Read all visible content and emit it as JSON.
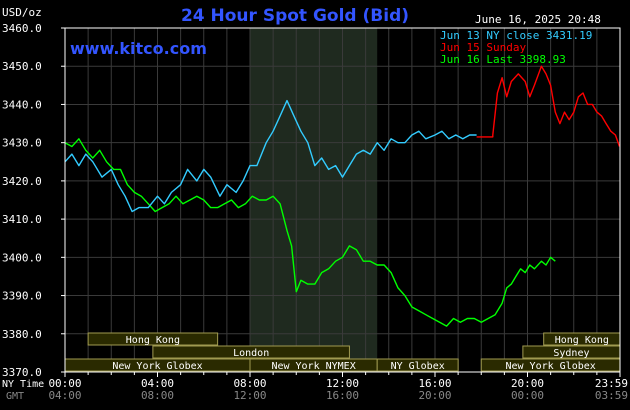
{
  "chart_data": {
    "type": "line",
    "title": "24 Hour Spot Gold (Bid)",
    "watermark": "www.kitco.com",
    "date_text": "June 16, 2025 20:48",
    "ylabel": "USD/oz",
    "ylim": [
      3370.0,
      3460.0
    ],
    "yticks": [
      "3460.0",
      "3450.0",
      "3440.0",
      "3430.0",
      "3420.0",
      "3410.0",
      "3400.0",
      "3390.0",
      "3380.0",
      "3370.0"
    ],
    "x_row_labels": {
      "ny": "NY Time",
      "gmt": "GMT"
    },
    "xticks_ny": [
      "00:00",
      "04:00",
      "08:00",
      "12:00",
      "16:00",
      "20:00",
      "23:59"
    ],
    "xticks_gmt": [
      "04:00",
      "08:00",
      "12:00",
      "16:00",
      "20:00",
      "00:00",
      "03:59"
    ],
    "xlim_hours": [
      0,
      24
    ],
    "shaded_session_hours": [
      8.0,
      13.5
    ],
    "grid": true,
    "legend_position": "top-right",
    "series": [
      {
        "name": "Jun 13 NY close 3431.19",
        "color": "#33ccff",
        "points": [
          [
            0.0,
            3425
          ],
          [
            0.3,
            3427
          ],
          [
            0.6,
            3424
          ],
          [
            0.9,
            3427
          ],
          [
            1.2,
            3425
          ],
          [
            1.6,
            3421
          ],
          [
            2.0,
            3423
          ],
          [
            2.3,
            3419
          ],
          [
            2.6,
            3416
          ],
          [
            2.9,
            3412
          ],
          [
            3.2,
            3413
          ],
          [
            3.6,
            3413
          ],
          [
            4.0,
            3416
          ],
          [
            4.3,
            3414
          ],
          [
            4.6,
            3417
          ],
          [
            5.0,
            3419
          ],
          [
            5.3,
            3423
          ],
          [
            5.7,
            3420
          ],
          [
            6.0,
            3423
          ],
          [
            6.3,
            3421
          ],
          [
            6.7,
            3416
          ],
          [
            7.0,
            3419
          ],
          [
            7.4,
            3417
          ],
          [
            7.7,
            3420
          ],
          [
            8.0,
            3424
          ],
          [
            8.3,
            3424
          ],
          [
            8.7,
            3430
          ],
          [
            9.0,
            3433
          ],
          [
            9.3,
            3437
          ],
          [
            9.6,
            3441
          ],
          [
            9.9,
            3437
          ],
          [
            10.2,
            3433
          ],
          [
            10.5,
            3430
          ],
          [
            10.8,
            3424
          ],
          [
            11.1,
            3426
          ],
          [
            11.4,
            3423
          ],
          [
            11.7,
            3424
          ],
          [
            12.0,
            3421
          ],
          [
            12.3,
            3424
          ],
          [
            12.6,
            3427
          ],
          [
            12.9,
            3428
          ],
          [
            13.2,
            3427
          ],
          [
            13.5,
            3430
          ],
          [
            13.8,
            3428
          ],
          [
            14.1,
            3431
          ],
          [
            14.4,
            3430
          ],
          [
            14.7,
            3430
          ],
          [
            15.0,
            3432
          ],
          [
            15.3,
            3433
          ],
          [
            15.6,
            3431
          ],
          [
            16.0,
            3432
          ],
          [
            16.3,
            3433
          ],
          [
            16.6,
            3431
          ],
          [
            16.9,
            3432
          ],
          [
            17.2,
            3431
          ],
          [
            17.5,
            3432
          ],
          [
            17.8,
            3432
          ]
        ]
      },
      {
        "name": "Jun 15 Sunday",
        "color": "#ff0000",
        "points": [
          [
            17.8,
            3431.5
          ],
          [
            18.5,
            3431.5
          ],
          [
            18.5,
            3432
          ],
          [
            18.7,
            3443
          ],
          [
            18.9,
            3447
          ],
          [
            19.1,
            3442
          ],
          [
            19.3,
            3446
          ],
          [
            19.6,
            3448
          ],
          [
            19.9,
            3446
          ],
          [
            20.1,
            3442
          ],
          [
            20.3,
            3445
          ],
          [
            20.6,
            3450
          ],
          [
            20.8,
            3448
          ],
          [
            21.0,
            3445
          ],
          [
            21.2,
            3438
          ],
          [
            21.4,
            3435
          ],
          [
            21.6,
            3438
          ],
          [
            21.8,
            3436
          ],
          [
            22.0,
            3438
          ],
          [
            22.2,
            3442
          ],
          [
            22.4,
            3443
          ],
          [
            22.6,
            3440
          ],
          [
            22.8,
            3440
          ],
          [
            23.0,
            3438
          ],
          [
            23.2,
            3437
          ],
          [
            23.4,
            3435
          ],
          [
            23.6,
            3433
          ],
          [
            23.8,
            3432
          ],
          [
            23.98,
            3429
          ]
        ]
      },
      {
        "name": "Jun 16 Last 3398.93",
        "color": "#00ff00",
        "points": [
          [
            0.0,
            3430
          ],
          [
            0.3,
            3429
          ],
          [
            0.6,
            3431
          ],
          [
            0.9,
            3428
          ],
          [
            1.2,
            3426
          ],
          [
            1.5,
            3428
          ],
          [
            1.8,
            3425
          ],
          [
            2.1,
            3423
          ],
          [
            2.4,
            3423
          ],
          [
            2.7,
            3419
          ],
          [
            3.0,
            3417
          ],
          [
            3.3,
            3416
          ],
          [
            3.6,
            3414
          ],
          [
            3.9,
            3412
          ],
          [
            4.2,
            3413
          ],
          [
            4.5,
            3414
          ],
          [
            4.8,
            3416
          ],
          [
            5.1,
            3414
          ],
          [
            5.4,
            3415
          ],
          [
            5.7,
            3416
          ],
          [
            6.0,
            3415
          ],
          [
            6.3,
            3413
          ],
          [
            6.6,
            3413
          ],
          [
            6.9,
            3414
          ],
          [
            7.2,
            3415
          ],
          [
            7.5,
            3413
          ],
          [
            7.8,
            3414
          ],
          [
            8.1,
            3416
          ],
          [
            8.4,
            3415
          ],
          [
            8.7,
            3415
          ],
          [
            9.0,
            3416
          ],
          [
            9.3,
            3414
          ],
          [
            9.6,
            3407
          ],
          [
            9.8,
            3403
          ],
          [
            10.0,
            3391
          ],
          [
            10.2,
            3394
          ],
          [
            10.5,
            3393
          ],
          [
            10.8,
            3393
          ],
          [
            11.1,
            3396
          ],
          [
            11.4,
            3397
          ],
          [
            11.7,
            3399
          ],
          [
            12.0,
            3400
          ],
          [
            12.3,
            3403
          ],
          [
            12.6,
            3402
          ],
          [
            12.9,
            3399
          ],
          [
            13.2,
            3399
          ],
          [
            13.5,
            3398
          ],
          [
            13.8,
            3398
          ],
          [
            14.1,
            3396
          ],
          [
            14.4,
            3392
          ],
          [
            14.7,
            3390
          ],
          [
            15.0,
            3387
          ],
          [
            15.3,
            3386
          ],
          [
            15.6,
            3385
          ],
          [
            15.9,
            3384
          ],
          [
            16.2,
            3383
          ],
          [
            16.5,
            3382
          ],
          [
            16.8,
            3384
          ],
          [
            17.1,
            3383
          ],
          [
            17.4,
            3384
          ],
          [
            17.7,
            3384
          ],
          [
            18.0,
            3383
          ],
          [
            18.3,
            3384
          ],
          [
            18.6,
            3385
          ],
          [
            18.9,
            3388
          ],
          [
            19.1,
            3392
          ],
          [
            19.3,
            3393
          ],
          [
            19.5,
            3395
          ],
          [
            19.7,
            3397
          ],
          [
            19.9,
            3396
          ],
          [
            20.1,
            3398
          ],
          [
            20.3,
            3397
          ],
          [
            20.6,
            3399
          ],
          [
            20.8,
            3398
          ],
          [
            21.0,
            3400
          ],
          [
            21.2,
            3399
          ]
        ]
      }
    ],
    "market_sessions": [
      {
        "label": "Hong Kong",
        "start": 1.0,
        "end": 6.6,
        "row": 0
      },
      {
        "label": "London",
        "start": 3.8,
        "end": 12.3,
        "row": 1
      },
      {
        "label": "New York Globex",
        "start": 0.0,
        "end": 8.0,
        "row": 2
      },
      {
        "label": "New York NYMEX",
        "start": 8.0,
        "end": 13.5,
        "row": 2
      },
      {
        "label": "NY Globex",
        "start": 13.5,
        "end": 17.0,
        "row": 2
      },
      {
        "label": "Hong Kong",
        "start": 20.7,
        "end": 24.0,
        "row": 0
      },
      {
        "label": "Sydney",
        "start": 19.8,
        "end": 24.0,
        "row": 1
      },
      {
        "label": "New York Globex",
        "start": 18.0,
        "end": 24.0,
        "row": 2
      }
    ]
  },
  "colors": {
    "background": "#000000",
    "plot_border": "#ffffff",
    "grid": "#3a3a3a",
    "shade": "#1f2a1f",
    "session_box": "#2a2a00",
    "session_border": "#a09a50",
    "session_text": "#ffffff",
    "title": "#3355ff",
    "watermark": "#3355ff",
    "axis_text": "#ffffff",
    "gmt_text": "#888888"
  }
}
